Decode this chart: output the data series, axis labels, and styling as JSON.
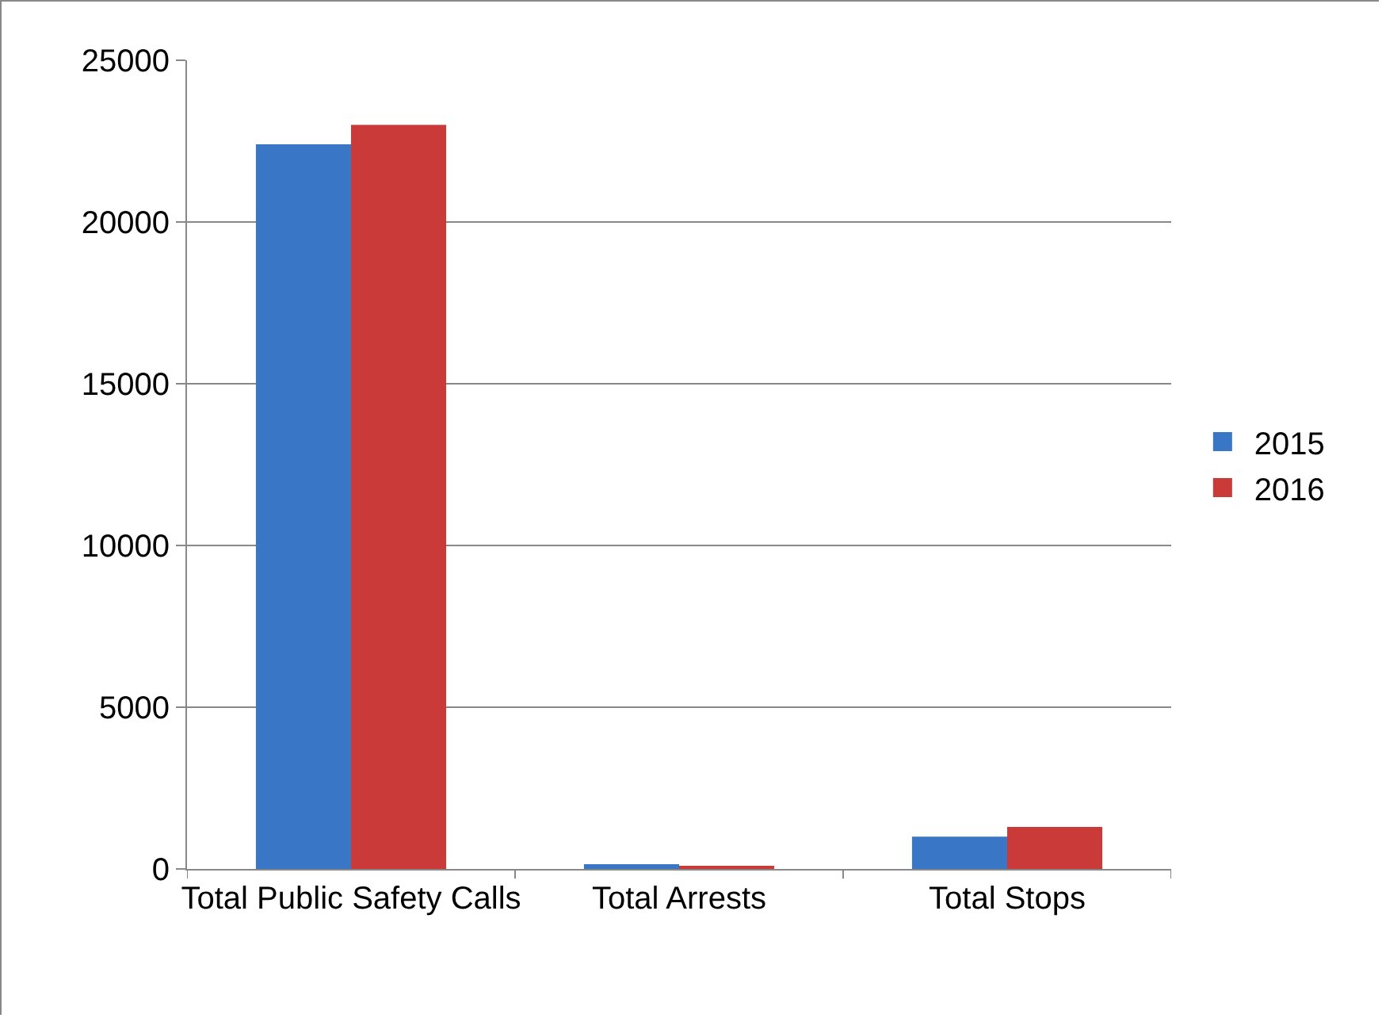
{
  "chart_data": {
    "type": "bar",
    "categories": [
      "Total Public Safety Calls",
      "Total Arrests",
      "Total Stops"
    ],
    "series": [
      {
        "name": "2015",
        "color": "#3a76c6",
        "values": [
          22400,
          150,
          1000
        ]
      },
      {
        "name": "2016",
        "color": "#c93a38",
        "values": [
          23000,
          100,
          1300
        ]
      }
    ],
    "ylim": [
      0,
      25000
    ],
    "yticks": [
      0,
      5000,
      10000,
      15000,
      20000,
      25000
    ],
    "grid": "y",
    "legend": "right"
  }
}
